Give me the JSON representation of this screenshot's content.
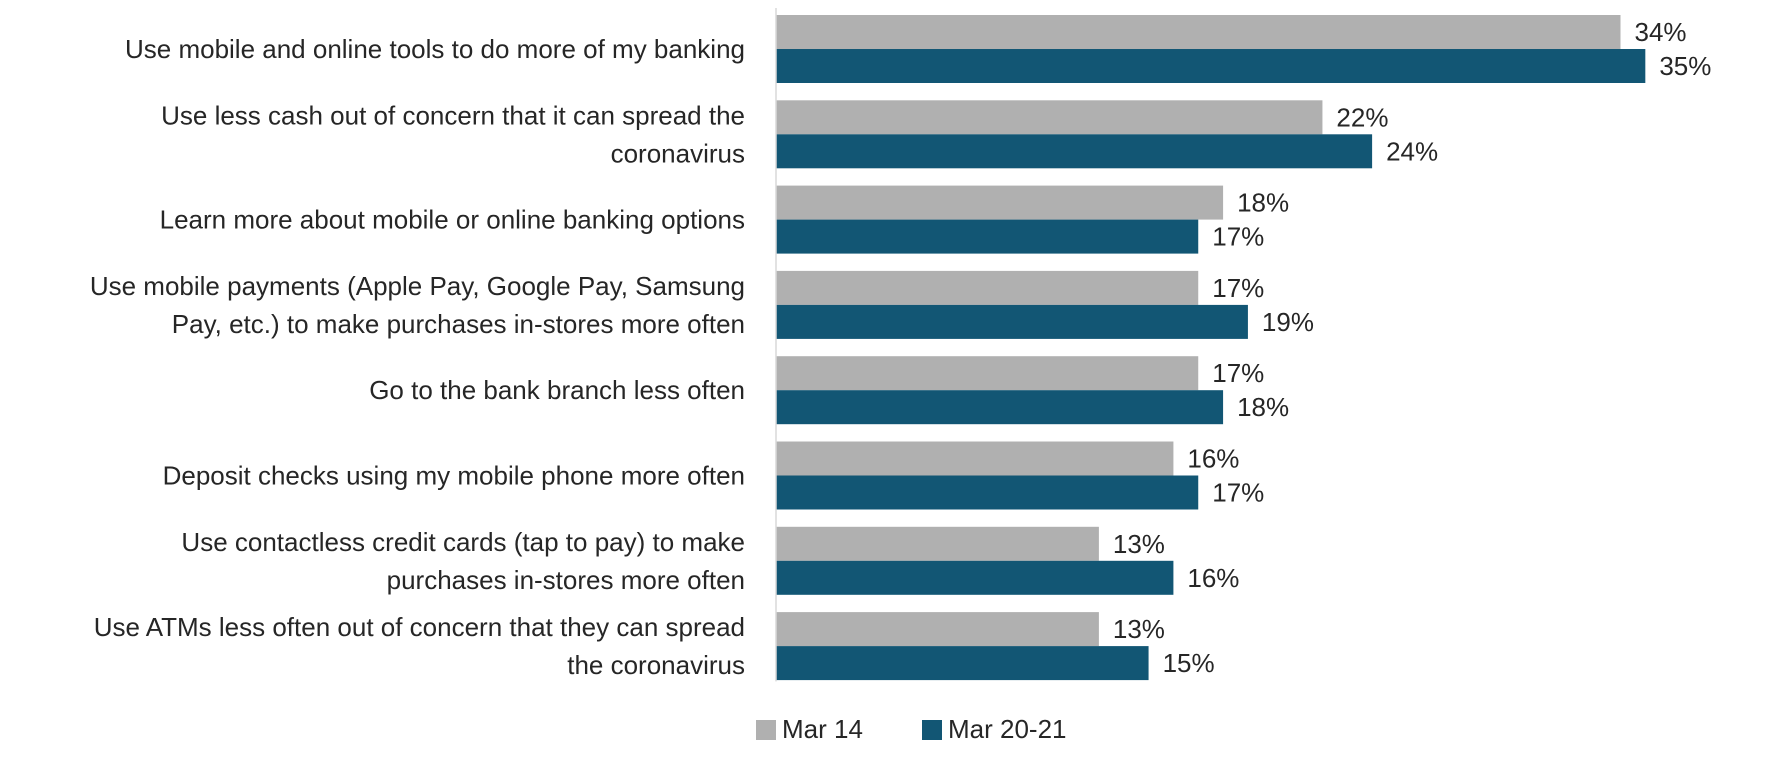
{
  "chart_data": {
    "type": "bar",
    "orientation": "horizontal",
    "categories": [
      "Use mobile and online tools to do more of my banking",
      "Use less cash out of concern that it can spread the coronavirus",
      "Learn more about mobile or online banking options",
      "Use mobile payments (Apple Pay, Google Pay, Samsung Pay, etc.) to make purchases in-stores more often",
      "Go to the bank branch less often",
      "Deposit checks using my mobile phone more often",
      "Use contactless credit cards (tap to pay) to make purchases in-stores more often",
      "Use ATMs less often out of concern that they can spread the coronavirus"
    ],
    "category_lines": [
      [
        "Use mobile and online tools to do more of my banking"
      ],
      [
        "Use less cash out of concern that it can spread the",
        "coronavirus"
      ],
      [
        "Learn more about mobile or online banking options"
      ],
      [
        "Use mobile payments (Apple Pay, Google Pay, Samsung",
        "Pay, etc.) to make purchases in-stores more often"
      ],
      [
        "Go to the bank branch less often"
      ],
      [
        "Deposit checks using my mobile phone more often"
      ],
      [
        "Use contactless credit cards (tap to pay) to make",
        "purchases in-stores more often"
      ],
      [
        "Use ATMs less often out of concern that they can spread",
        "the coronavirus"
      ]
    ],
    "series": [
      {
        "name": "Mar 14",
        "color": "#b0b0b0",
        "values": [
          34,
          22,
          18,
          17,
          17,
          16,
          13,
          13
        ],
        "labels": [
          "34%",
          "22%",
          "18%",
          "17%",
          "17%",
          "16%",
          "13%",
          "13%"
        ]
      },
      {
        "name": "Mar 20-21",
        "color": "#125674",
        "values": [
          35,
          24,
          17,
          19,
          18,
          17,
          16,
          15
        ],
        "labels": [
          "35%",
          "24%",
          "17%",
          "19%",
          "18%",
          "17%",
          "16%",
          "15%"
        ]
      }
    ],
    "value_unit": "%",
    "xlim": [
      0,
      37
    ],
    "grid": false,
    "legend_position": "bottom",
    "axis_color": "#d9d9d9",
    "text_color": "#262626"
  }
}
